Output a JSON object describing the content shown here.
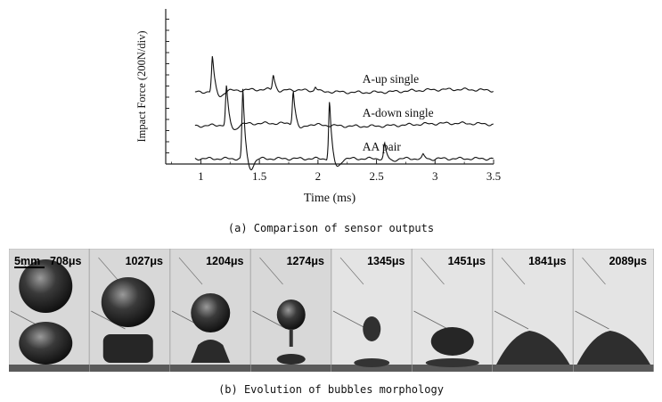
{
  "chart_data": {
    "type": "line",
    "ylabel": "Impact Force (200N/div)",
    "xlabel": "Time (ms)",
    "xlim": [
      0.7,
      3.5
    ],
    "xticks": [
      "1",
      "1.5",
      "2",
      "2.5",
      "3",
      "3.5"
    ],
    "grid": false,
    "series": [
      {
        "name": "A-up single",
        "offset": 2,
        "peaks": [
          [
            1.1,
            0.95
          ],
          [
            1.62,
            0.4
          ],
          [
            1.98,
            0.12
          ]
        ]
      },
      {
        "name": "A-down single",
        "offset": 1,
        "peaks": [
          [
            1.22,
            1.05
          ],
          [
            1.79,
            0.9
          ]
        ]
      },
      {
        "name": "AA pair",
        "offset": 0,
        "peaks": [
          [
            1.36,
            1.9
          ],
          [
            2.1,
            1.55
          ],
          [
            2.57,
            0.4
          ],
          [
            2.9,
            0.1
          ]
        ]
      }
    ]
  },
  "captions": {
    "a": "(a) Comparison of sensor outputs",
    "b": "(b) Evolution of bubbles morphology"
  },
  "frames": {
    "scale_label": "5mm",
    "labels": [
      "708μs",
      "1027μs",
      "1204μs",
      "1274μs",
      "1345μs",
      "1451μs",
      "1841μs",
      "2089μs"
    ]
  }
}
